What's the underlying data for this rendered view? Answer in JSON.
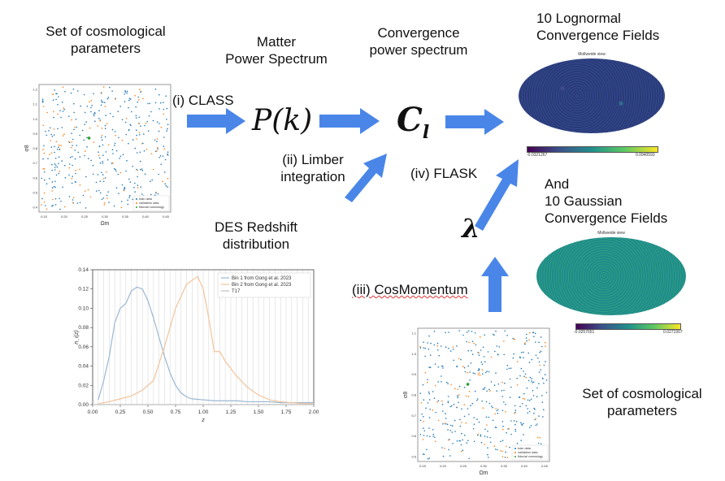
{
  "labels": {
    "params_top": "Set of cosmological\nparameters",
    "matter_power": "Matter\nPower  Spectrum",
    "convergence_ps": "Convergence\npower spectrum",
    "lognormal": "10 Lognormal\nConvergence Fields",
    "gaussian": "And\n10 Gaussian\nConvergence Fields",
    "class_step": "(i) CLASS",
    "limber_step": "(ii) Limber\nintegration",
    "flask_step": "(iv) FLASK",
    "cosmomentum_step": "(iii) CosMomentum",
    "des_redshift": "DES Redshift\ndistribution",
    "params_bottom": "Set of cosmological\nparameters",
    "pk_symbol": "P(k)",
    "cl_symbol": "C",
    "cl_subscript": "l",
    "lambda_symbol": "λ"
  },
  "colors": {
    "arrow": "#4a86e8",
    "train": "#1f77b4",
    "validation": "#ff7f0e",
    "fiducial": "#2ca02c"
  },
  "scatter_top": {
    "xlabel": "Ωm",
    "ylabel": "σ8",
    "xticks": [
      "0.15",
      "0.20",
      "0.25",
      "0.30",
      "0.35",
      "0.40",
      "0.45"
    ],
    "yticks": [
      "1.2",
      "1.1",
      "1.0",
      "0.9",
      "0.8",
      "0.7",
      "0.6",
      "0.5",
      "0.4"
    ],
    "legend": [
      "train data",
      "validation data",
      "fiducial cosmology"
    ]
  },
  "scatter_bottom": {
    "xlabel": "Ωm",
    "ylabel": "σ8",
    "xticks": [
      "0.15",
      "0.20",
      "0.25",
      "0.30",
      "0.35",
      "0.40",
      "0.45"
    ],
    "yticks": [
      "1.1",
      "1.0",
      "0.9",
      "0.8",
      "0.7",
      "0.6",
      "0.5"
    ],
    "legend": [
      "train data",
      "validation data",
      "fiducial cosmology"
    ]
  },
  "maps": {
    "lognormal": {
      "title": "Mollweide view",
      "cbar_min": "-0.0321267",
      "cbar_max": "0.0940593"
    },
    "gaussian": {
      "title": "Mollweide view",
      "cbar_min": "-0.0257651",
      "cbar_max": "0.0271957"
    }
  },
  "chart_data": {
    "type": "line",
    "title": "",
    "xlabel": "z",
    "ylabel": "n_i(z)",
    "xlim": [
      0,
      2.0
    ],
    "ylim": [
      0,
      0.14
    ],
    "xticks": [
      "0.00",
      "0.25",
      "0.50",
      "0.75",
      "1.00",
      "1.25",
      "1.50",
      "1.75",
      "2.00"
    ],
    "yticks": [
      "0.00",
      "0.02",
      "0.04",
      "0.06",
      "0.08",
      "0.10",
      "0.12",
      "0.14"
    ],
    "grid": "vertical",
    "legend_position": "top-right",
    "series": [
      {
        "name": "Bin 1 from Gong et al. 2023",
        "color": "#9ab8d4",
        "x": [
          0.05,
          0.1,
          0.15,
          0.2,
          0.25,
          0.3,
          0.35,
          0.4,
          0.45,
          0.5,
          0.55,
          0.6,
          0.65,
          0.7,
          0.75,
          0.8,
          0.85,
          0.9,
          1.0,
          1.1,
          1.2,
          1.3,
          1.4,
          1.5,
          1.6,
          1.7,
          1.8,
          1.9,
          2.0
        ],
        "y": [
          0.005,
          0.025,
          0.05,
          0.085,
          0.1,
          0.105,
          0.118,
          0.122,
          0.12,
          0.108,
          0.09,
          0.07,
          0.05,
          0.033,
          0.02,
          0.012,
          0.008,
          0.006,
          0.005,
          0.004,
          0.004,
          0.004,
          0.003,
          0.003,
          0.003,
          0.002,
          0.002,
          0.002,
          0.002
        ]
      },
      {
        "name": "Bin 2 from Gong et al. 2023",
        "color": "#f2c49b",
        "x": [
          0.05,
          0.15,
          0.25,
          0.35,
          0.45,
          0.55,
          0.65,
          0.75,
          0.85,
          0.95,
          1.0,
          1.05,
          1.1,
          1.15,
          1.2,
          1.3,
          1.4,
          1.5,
          1.6,
          1.7,
          1.8,
          1.9,
          2.0
        ],
        "y": [
          0.001,
          0.003,
          0.006,
          0.009,
          0.015,
          0.025,
          0.06,
          0.1,
          0.125,
          0.133,
          0.12,
          0.09,
          0.055,
          0.055,
          0.045,
          0.03,
          0.018,
          0.01,
          0.005,
          0.003,
          0.002,
          0.001,
          0.001
        ]
      },
      {
        "name": "T17",
        "color": "#bfbfbf",
        "x": [
          0.0,
          2.0
        ],
        "y": [
          0.0,
          0.0
        ]
      }
    ]
  }
}
